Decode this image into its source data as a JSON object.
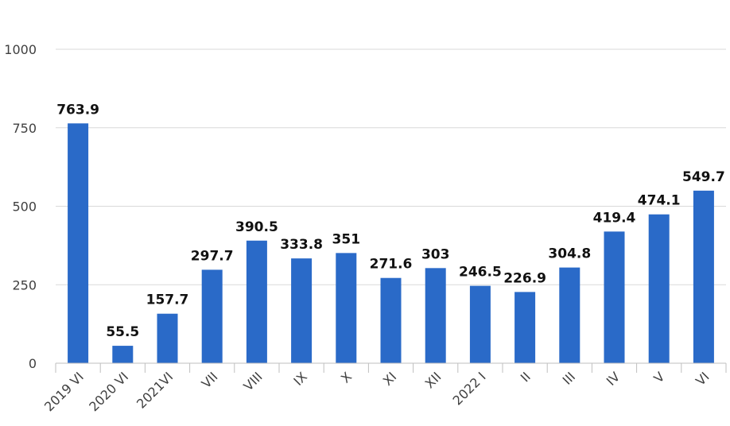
{
  "chart_data": {
    "type": "bar",
    "categories": [
      "2019 VI",
      "2020 VI",
      "2021VI",
      "VII",
      "VIII",
      "IX",
      "X",
      "XI",
      "XII",
      "2022 I",
      "II",
      "III",
      "IV",
      "V",
      "VI"
    ],
    "values": [
      763.9,
      55.5,
      157.7,
      297.7,
      390.5,
      333.8,
      351,
      271.6,
      303,
      246.5,
      226.9,
      304.8,
      419.4,
      474.1,
      549.7
    ],
    "data_labels": [
      "763.9",
      "55.5",
      "157.7",
      "297.7",
      "390.5",
      "333.8",
      "351",
      "271.6",
      "303",
      "246.5",
      "226.9",
      "304.8",
      "419.4",
      "474.1",
      "549.7"
    ],
    "y_ticks": [
      "0",
      "250",
      "500",
      "750",
      "1000"
    ],
    "ylim": [
      0,
      1000
    ],
    "grid": true,
    "legend": "none",
    "bar_color": "#2a6ac8"
  }
}
